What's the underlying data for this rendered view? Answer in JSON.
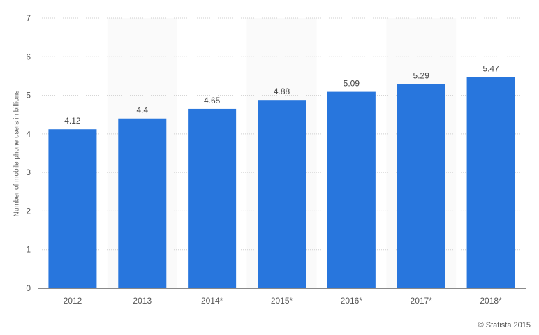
{
  "chart_data": {
    "type": "bar",
    "title": "",
    "xlabel": "",
    "ylabel": "Number of mobile phone users in billions",
    "categories": [
      "2012",
      "2013",
      "2014*",
      "2015*",
      "2016*",
      "2017*",
      "2018*"
    ],
    "values": [
      4.12,
      4.4,
      4.65,
      4.88,
      5.09,
      5.29,
      5.47
    ],
    "data_labels": [
      "4.12",
      "4.4",
      "4.65",
      "4.88",
      "5.09",
      "5.29",
      "5.47"
    ],
    "ylim": [
      0,
      7
    ],
    "yticks": [
      "0",
      "1",
      "2",
      "3",
      "4",
      "5",
      "6",
      "7"
    ],
    "grid": true,
    "legend": null,
    "bar_color": "#2876dd",
    "band_color": "#fafafa"
  },
  "credit": "© Statista 2015"
}
